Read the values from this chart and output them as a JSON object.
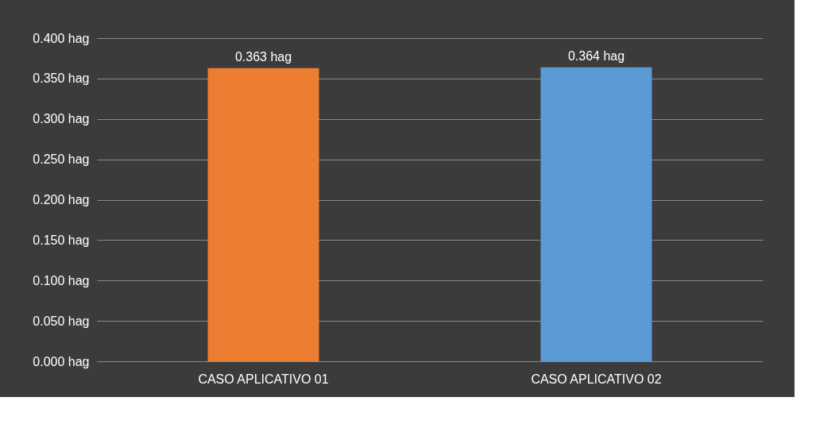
{
  "chart_data": {
    "type": "bar",
    "categories": [
      "CASO APLICATIVO 01",
      "CASO APLICATIVO 02"
    ],
    "values": [
      0.363,
      0.364
    ],
    "colors": [
      "#ed7d31",
      "#5b9bd5"
    ],
    "value_labels": [
      "0.363 hag",
      "0.364 hag"
    ],
    "ylim": [
      0,
      0.4
    ],
    "yticks": [
      {
        "value": 0,
        "label": "0.000 hag"
      },
      {
        "value": 0.05,
        "label": "0.050 hag"
      },
      {
        "value": 0.1,
        "label": "0.100 hag"
      },
      {
        "value": 0.15,
        "label": "0.150 hag"
      },
      {
        "value": 0.2,
        "label": "0.200 hag"
      },
      {
        "value": 0.25,
        "label": "0.250 hag"
      },
      {
        "value": 0.3,
        "label": "0.300 hag"
      },
      {
        "value": 0.35,
        "label": "0.350 hag"
      },
      {
        "value": 0.4,
        "label": "0.400 hag"
      }
    ],
    "grid": "y",
    "legend": false
  }
}
